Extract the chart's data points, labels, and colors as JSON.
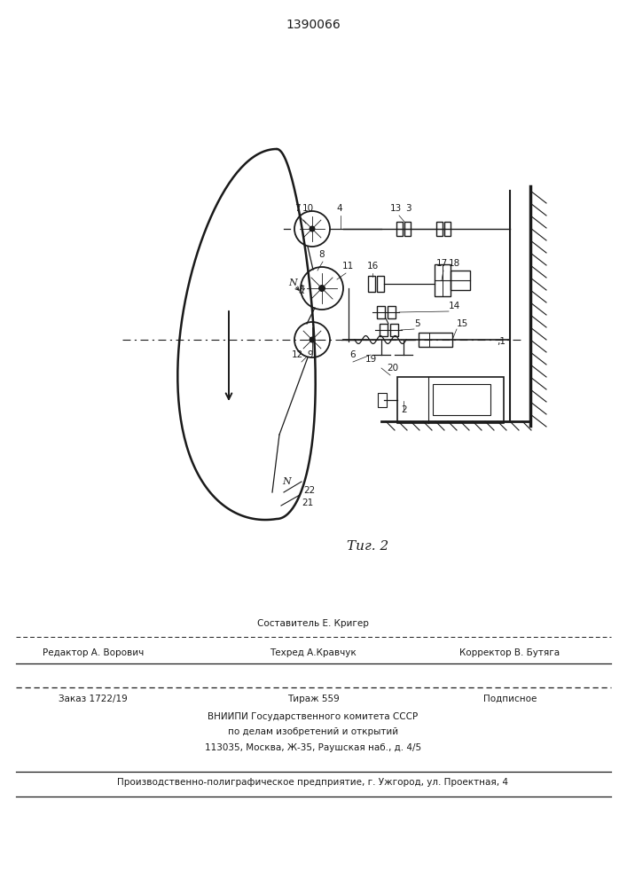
{
  "patent_number": "1390066",
  "fig_label": "Τиг. 2",
  "background_color": "#ffffff",
  "line_color": "#1a1a1a",
  "footer": {
    "line1_center": "Составитель Е. Кригер",
    "line2_left": "Редактор А. Ворович",
    "line2_center": "Техред А.Кравчук",
    "line2_right": "Корректор В. Бутяга",
    "line3_left": "Заказ 1722/19",
    "line3_center": "Тираж 559",
    "line3_right": "Подписное",
    "line4": "ВНИИПИ Государственного комитета СССР",
    "line5": "по делам изобретений и открытий",
    "line6": "113035, Москва, Ж-35, Раушская наб., д. 4/5",
    "line7": "Производственно-полиграфическое предприятие, г. Ужгород, ул. Проектная, 4"
  }
}
